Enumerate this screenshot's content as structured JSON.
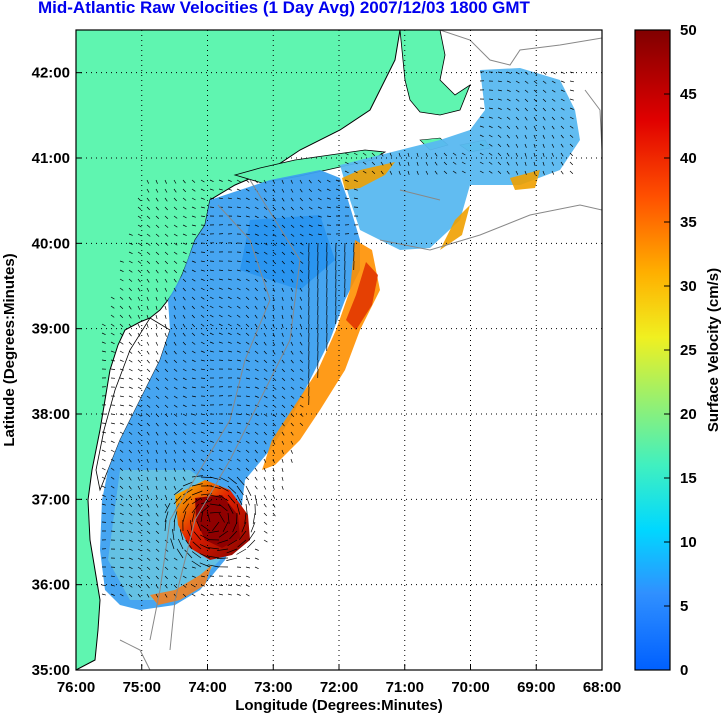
{
  "title": "Mid-Atlantic Raw Velocities (1 Day Avg) 2007/12/03 1800 GMT",
  "map": {
    "xlabel": "Longitude (Degrees:Minutes)",
    "ylabel": "Latitude (Degrees:Minutes)",
    "xticks": [
      "76:00",
      "75:00",
      "74:00",
      "73:00",
      "72:00",
      "71:00",
      "70:00",
      "69:00",
      "68:00"
    ],
    "yticks": [
      "35:00",
      "36:00",
      "37:00",
      "38:00",
      "39:00",
      "40:00",
      "41:00",
      "42:00"
    ],
    "lon_range": [
      -76,
      -68
    ],
    "lat_range": [
      35,
      42.5
    ],
    "land_color": "#5ff5b0",
    "grid": "dotted"
  },
  "colorbar": {
    "label": "Surface Velocity (cm/s)",
    "ticks": [
      "0",
      "5",
      "10",
      "15",
      "20",
      "25",
      "30",
      "35",
      "40",
      "45",
      "50"
    ],
    "range": [
      0,
      50
    ],
    "colormap": "jet"
  }
}
